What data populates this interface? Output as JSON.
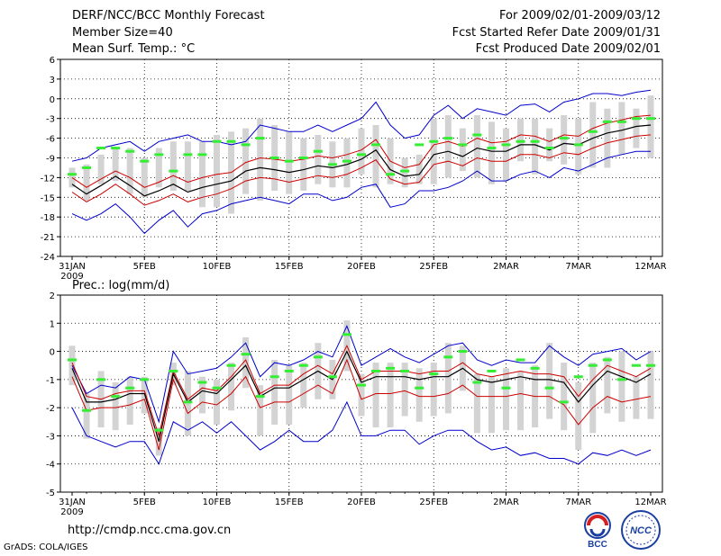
{
  "header": {
    "title": "DERF/NCC/BCC Monthly Forecast",
    "member_size": "Member Size=40",
    "variable": "Mean Surf. Temp.: °C",
    "period": "For 2009/02/01-2009/03/12",
    "fcst_started": "Fcst Started Refer Date 2009/01/31",
    "fcst_produced": "Fcst Produced Date 2009/02/01"
  },
  "footer": {
    "url": "http://cmdp.ncc.cma.gov.cn",
    "grads": "GrADS: COLA/IGES",
    "logo_bcc": "BCC",
    "logo_ncc": "NCC"
  },
  "colors": {
    "mean_line": "#000000",
    "std_line": "#cc0000",
    "extreme_line": "#0000cc",
    "box": "#d3d3d3",
    "observed": "#33ee33"
  },
  "chart_data": [
    {
      "type": "line",
      "title": "Mean Surf. Temp.: °C",
      "ylabel": "°C",
      "ylim": [
        -24,
        6
      ],
      "yticks": [
        6,
        3,
        0,
        -3,
        -6,
        -9,
        -12,
        -15,
        -18,
        -21,
        -24
      ],
      "xlim": [
        0,
        40
      ],
      "xticks": [
        {
          "x": 0,
          "label": "31JAN",
          "sub": "2009"
        },
        {
          "x": 5,
          "label": "5FEB"
        },
        {
          "x": 10,
          "label": "10FEB"
        },
        {
          "x": 15,
          "label": "15FEB"
        },
        {
          "x": 20,
          "label": "20FEB"
        },
        {
          "x": 25,
          "label": "25FEB"
        },
        {
          "x": 30,
          "label": "2MAR"
        },
        {
          "x": 35,
          "label": "7MAR"
        },
        {
          "x": 40,
          "label": "12MAR"
        }
      ],
      "grid": true,
      "series": [
        {
          "name": "ensemble_mean",
          "values": [
            -13.0,
            -14.5,
            -13.2,
            -11.8,
            -13.2,
            -14.8,
            -14.0,
            -13.0,
            -14.2,
            -13.5,
            -13.0,
            -12.5,
            -11.0,
            -10.5,
            -10.8,
            -11.2,
            -10.8,
            -10.2,
            -10.5,
            -10.0,
            -9.2,
            -7.8,
            -10.8,
            -11.8,
            -11.5,
            -8.5,
            -8.0,
            -8.8,
            -7.5,
            -8.0,
            -8.0,
            -7.0,
            -7.0,
            -7.8,
            -6.8,
            -7.0,
            -6.0,
            -5.2,
            -4.8,
            -4.2,
            -4.0
          ]
        },
        {
          "name": "mean_plus_std",
          "values": [
            -12.0,
            -13.5,
            -12.2,
            -11.0,
            -12.0,
            -13.5,
            -12.7,
            -11.7,
            -12.7,
            -12.0,
            -11.5,
            -11.2,
            -9.7,
            -9.0,
            -9.2,
            -9.5,
            -9.2,
            -8.7,
            -9.0,
            -8.5,
            -7.8,
            -6.2,
            -9.5,
            -10.5,
            -10.0,
            -7.0,
            -6.5,
            -7.2,
            -6.0,
            -6.7,
            -6.5,
            -5.5,
            -5.7,
            -6.5,
            -5.5,
            -5.7,
            -4.5,
            -3.7,
            -3.2,
            -2.7,
            -2.5
          ]
        },
        {
          "name": "mean_minus_std",
          "values": [
            -14.2,
            -15.7,
            -14.5,
            -13.0,
            -14.5,
            -16.2,
            -15.5,
            -14.5,
            -15.7,
            -15.0,
            -14.5,
            -13.7,
            -12.5,
            -12.0,
            -12.2,
            -12.7,
            -12.2,
            -11.7,
            -12.0,
            -11.5,
            -10.5,
            -9.3,
            -12.2,
            -13.0,
            -12.7,
            -10.0,
            -9.5,
            -10.2,
            -9.0,
            -9.5,
            -9.5,
            -8.5,
            -8.5,
            -9.0,
            -8.2,
            -8.5,
            -7.5,
            -6.7,
            -6.2,
            -5.7,
            -5.5
          ]
        },
        {
          "name": "ensemble_max",
          "values": [
            -9.5,
            -9.0,
            -7.5,
            -7.0,
            -6.5,
            -8.0,
            -6.5,
            -6.0,
            -5.5,
            -6.5,
            -6.5,
            -7.0,
            -6.5,
            -4.0,
            -4.5,
            -5.0,
            -5.0,
            -4.0,
            -5.0,
            -4.0,
            -3.0,
            -0.5,
            -4.0,
            -6.0,
            -5.5,
            -2.5,
            -1.0,
            -3.0,
            -1.5,
            -2.0,
            -2.5,
            -1.0,
            -0.8,
            -2.0,
            -0.5,
            0.0,
            0.8,
            0.8,
            0.5,
            1.0,
            1.3
          ]
        },
        {
          "name": "ensemble_min",
          "values": [
            -17.5,
            -18.5,
            -17.5,
            -16.0,
            -18.0,
            -20.5,
            -18.5,
            -17.0,
            -19.5,
            -17.5,
            -17.0,
            -16.0,
            -15.5,
            -15.0,
            -15.5,
            -16.0,
            -14.5,
            -14.5,
            -15.5,
            -15.0,
            -13.5,
            -13.0,
            -16.5,
            -16.0,
            -14.0,
            -14.0,
            -13.5,
            -12.5,
            -11.0,
            -12.5,
            -12.5,
            -11.5,
            -11.0,
            -12.0,
            -10.5,
            -11.0,
            -10.0,
            -9.0,
            -8.5,
            -8.0,
            -8.0
          ]
        },
        {
          "name": "box_upper",
          "values": [
            -10.5,
            -10.0,
            -8.5,
            -7.5,
            -7.5,
            -9.0,
            -7.5,
            -6.5,
            -6.5,
            -6.5,
            -5.5,
            -5.0,
            -4.5,
            -3.0,
            -4.0,
            -5.0,
            -6.0,
            -5.5,
            -6.5,
            -6.0,
            -4.5,
            -4.0,
            -6.0,
            -9.0,
            -8.5,
            -3.0,
            -2.5,
            -4.5,
            -2.5,
            -3.5,
            -4.5,
            -3.0,
            -3.0,
            -4.5,
            -2.5,
            -3.0,
            -0.5,
            -1.5,
            -0.5,
            -1.5,
            0.5
          ]
        },
        {
          "name": "box_lower",
          "values": [
            -13.5,
            -15.5,
            -13.0,
            -12.5,
            -14.5,
            -15.0,
            -13.5,
            -14.0,
            -14.0,
            -16.5,
            -16.5,
            -17.5,
            -14.5,
            -15.5,
            -14.0,
            -14.5,
            -14.0,
            -13.0,
            -13.5,
            -13.5,
            -11.5,
            -13.5,
            -13.0,
            -13.5,
            -13.0,
            -13.0,
            -12.0,
            -11.0,
            -12.0,
            -13.0,
            -12.5,
            -9.5,
            -11.5,
            -9.5,
            -10.0,
            -11.5,
            -10.5,
            -10.5,
            -8.5,
            -7.5,
            -9.0
          ]
        },
        {
          "name": "observed",
          "values": [
            -11.5,
            -10.5,
            -7.5,
            -7.5,
            -8.0,
            -9.5,
            -8.5,
            -11.0,
            -8.5,
            -8.5,
            -6.5,
            -6.5,
            -7.0,
            -6.0,
            -9.0,
            -9.5,
            -9.0,
            -8.0,
            -10.0,
            -9.5,
            -8.5,
            -7.0,
            -11.5,
            -11.0,
            -7.0,
            -6.5,
            -6.0,
            -7.0,
            -5.5,
            -7.5,
            -7.0,
            -6.5,
            -6.5,
            -7.5,
            -6.0,
            -7.0,
            -5.0,
            -3.5,
            -3.5,
            -3.0,
            -3.0
          ]
        }
      ]
    },
    {
      "type": "line",
      "title": "Prec.: log(mm/d)",
      "ylabel": "log(mm/d)",
      "ylim": [
        -5,
        2
      ],
      "yticks": [
        2,
        1,
        0,
        -1,
        -2,
        -3,
        -4,
        -5
      ],
      "xlim": [
        0,
        40
      ],
      "xticks": [
        {
          "x": 0,
          "label": "31JAN",
          "sub": "2009"
        },
        {
          "x": 5,
          "label": "5FEB"
        },
        {
          "x": 10,
          "label": "10FEB"
        },
        {
          "x": 15,
          "label": "15FEB"
        },
        {
          "x": 20,
          "label": "20FEB"
        },
        {
          "x": 25,
          "label": "25FEB"
        },
        {
          "x": 30,
          "label": "2MAR"
        },
        {
          "x": 35,
          "label": "7MAR"
        },
        {
          "x": 40,
          "label": "12MAR"
        }
      ],
      "grid": true,
      "series": [
        {
          "name": "ensemble_mean",
          "values": [
            -0.6,
            -1.8,
            -1.8,
            -1.7,
            -1.5,
            -1.5,
            -3.2,
            -0.8,
            -1.8,
            -1.4,
            -1.5,
            -1.0,
            -0.5,
            -1.6,
            -1.3,
            -1.3,
            -1.0,
            -0.7,
            -1.0,
            0.0,
            -1.1,
            -0.9,
            -0.9,
            -0.9,
            -1.0,
            -0.9,
            -0.9,
            -0.6,
            -1.0,
            -1.1,
            -1.0,
            -0.9,
            -1.0,
            -1.0,
            -1.1,
            -1.8,
            -1.2,
            -0.7,
            -0.9,
            -1.1,
            -0.8
          ]
        },
        {
          "name": "mean_plus_std",
          "values": [
            -0.4,
            -1.6,
            -1.7,
            -1.5,
            -1.4,
            -1.4,
            -3.0,
            -0.7,
            -1.7,
            -1.3,
            -1.4,
            -0.9,
            -0.3,
            -1.5,
            -1.2,
            -1.2,
            -0.8,
            -0.5,
            -0.8,
            0.2,
            -1.0,
            -0.7,
            -0.7,
            -0.7,
            -0.8,
            -0.7,
            -0.7,
            -0.4,
            -0.8,
            -0.9,
            -0.8,
            -0.7,
            -0.8,
            -0.8,
            -0.9,
            -1.6,
            -1.0,
            -0.5,
            -0.7,
            -0.9,
            -0.6
          ]
        },
        {
          "name": "mean_minus_std",
          "values": [
            -0.9,
            -2.1,
            -2.0,
            -2.0,
            -1.9,
            -1.7,
            -3.5,
            -1.0,
            -2.2,
            -1.8,
            -1.9,
            -1.5,
            -0.9,
            -2.0,
            -1.8,
            -1.8,
            -1.5,
            -1.2,
            -1.5,
            -0.3,
            -1.7,
            -1.5,
            -1.5,
            -1.4,
            -1.6,
            -1.6,
            -1.5,
            -1.2,
            -1.6,
            -1.6,
            -1.6,
            -1.5,
            -1.6,
            -1.6,
            -1.9,
            -2.6,
            -2.0,
            -1.6,
            -1.8,
            -1.7,
            -1.6
          ]
        },
        {
          "name": "ensemble_max",
          "values": [
            -0.5,
            -1.5,
            -1.2,
            -1.3,
            -0.9,
            -1.0,
            -2.5,
            0.0,
            -0.8,
            -0.7,
            -0.6,
            -0.2,
            0.3,
            -0.9,
            -0.4,
            -0.5,
            -0.3,
            0.0,
            -0.2,
            0.9,
            -0.5,
            -0.2,
            0.1,
            -0.2,
            -0.4,
            -0.1,
            0.2,
            0.3,
            -0.3,
            -0.5,
            -0.3,
            -0.4,
            -0.4,
            0.2,
            -0.2,
            -0.5,
            -0.1,
            0.0,
            0.1,
            -0.3,
            0.0
          ]
        },
        {
          "name": "ensemble_min",
          "values": [
            -2.0,
            -3.0,
            -3.2,
            -3.4,
            -3.2,
            -3.2,
            -4.0,
            -2.5,
            -2.8,
            -2.5,
            -2.9,
            -2.5,
            -3.0,
            -3.5,
            -3.2,
            -2.8,
            -3.2,
            -3.2,
            -2.8,
            -1.8,
            -3.0,
            -3.0,
            -2.8,
            -2.8,
            -3.3,
            -3.0,
            -2.8,
            -2.8,
            -3.2,
            -3.5,
            -3.4,
            -3.7,
            -3.6,
            -3.8,
            -3.8,
            -4.0,
            -3.6,
            -3.7,
            -3.5,
            -3.7,
            -3.5
          ]
        },
        {
          "name": "box_upper",
          "values": [
            0.2,
            -1.5,
            -0.7,
            -1.1,
            -0.9,
            -0.9,
            -2.7,
            -0.4,
            -0.7,
            -0.9,
            -1.0,
            -0.4,
            0.5,
            -1.2,
            -0.3,
            -0.5,
            -0.4,
            0.3,
            -0.3,
            1.1,
            -0.8,
            -0.4,
            -0.4,
            -0.4,
            -0.6,
            -0.4,
            0.3,
            0.2,
            -0.8,
            -0.9,
            -0.6,
            -0.7,
            -0.5,
            0.3,
            -0.4,
            -1.1,
            -0.4,
            -0.2,
            0.0,
            -0.9,
            0.0
          ]
        },
        {
          "name": "box_lower",
          "values": [
            -1.2,
            -3.1,
            -2.7,
            -2.8,
            -2.6,
            -2.2,
            -3.7,
            -1.2,
            -3.0,
            -2.2,
            -2.6,
            -2.1,
            -1.3,
            -3.0,
            -2.6,
            -2.6,
            -2.0,
            -1.7,
            -1.7,
            -0.7,
            -2.3,
            -2.7,
            -2.7,
            -2.3,
            -2.5,
            -2.3,
            -2.2,
            -1.4,
            -2.9,
            -2.9,
            -2.8,
            -2.8,
            -2.7,
            -2.4,
            -2.8,
            -3.5,
            -2.9,
            -2.2,
            -2.5,
            -2.4,
            -2.4
          ]
        },
        {
          "name": "observed",
          "values": [
            -0.3,
            -2.1,
            -1.0,
            -1.6,
            -1.3,
            -1.0,
            -2.8,
            -0.7,
            -1.8,
            -1.1,
            -1.3,
            -0.5,
            -0.1,
            -1.6,
            -0.9,
            -0.7,
            -0.5,
            -0.2,
            -0.9,
            0.6,
            -1.2,
            -0.7,
            -0.6,
            -0.7,
            -1.3,
            -0.8,
            -0.2,
            0.0,
            -1.1,
            -0.7,
            -1.3,
            -0.3,
            -0.6,
            -1.3,
            -1.8,
            -0.9,
            -0.5,
            -0.3,
            -1.0,
            -0.5,
            -0.5
          ]
        }
      ]
    }
  ]
}
